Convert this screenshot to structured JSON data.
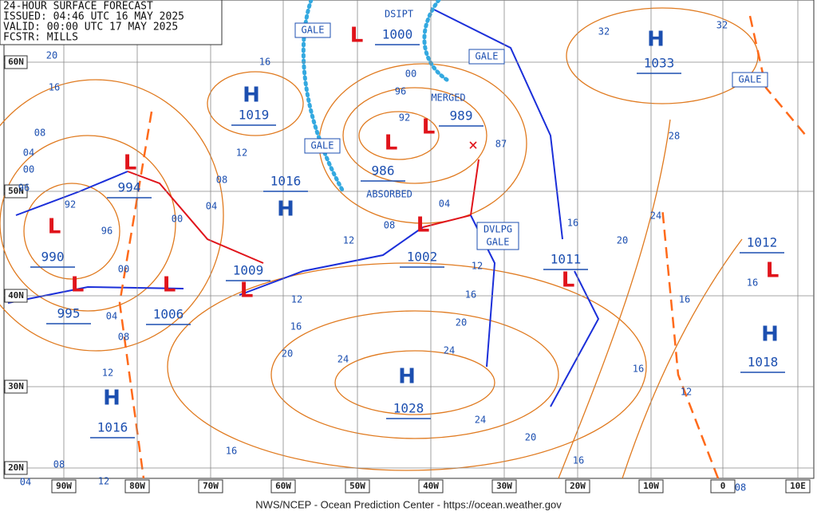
{
  "header": [
    "24-HOUR SURFACE FORECAST",
    "ISSUED: 04:46 UTC 16 MAY 2025",
    "VALID: 00:00 UTC 17 MAY 2025",
    "FCSTR: MILLS"
  ],
  "lat_labels": [
    "60N",
    "50N",
    "40N",
    "30N",
    "20N"
  ],
  "lon_labels": [
    "90W",
    "80W",
    "70W",
    "60W",
    "50W",
    "40W",
    "30W",
    "20W",
    "10W",
    "0",
    "10E"
  ],
  "centers": [
    {
      "symbol": "H",
      "pressure": "1019"
    },
    {
      "symbol": "L",
      "pressure": "1000"
    },
    {
      "symbol": "H",
      "pressure": "1033"
    },
    {
      "symbol": "L",
      "pressure": "989"
    },
    {
      "symbol": "L",
      "pressure": "986"
    },
    {
      "symbol": "L",
      "pressure": "994"
    },
    {
      "symbol": "H",
      "pressure": "1016"
    },
    {
      "symbol": "L",
      "pressure": "990"
    },
    {
      "symbol": "L",
      "pressure": "995"
    },
    {
      "symbol": "L",
      "pressure": "1006"
    },
    {
      "symbol": "L",
      "pressure": "1009"
    },
    {
      "symbol": "L",
      "pressure": "1002"
    },
    {
      "symbol": "L",
      "pressure": "1011"
    },
    {
      "symbol": "L",
      "pressure": "1012"
    },
    {
      "symbol": "H",
      "pressure": "1018"
    },
    {
      "symbol": "H",
      "pressure": "1028"
    },
    {
      "symbol": "H",
      "pressure": "1016"
    }
  ],
  "isobar_labels": [
    "16",
    "08",
    "04",
    "00",
    "96",
    "92",
    "96",
    "00",
    "04",
    "08",
    "12",
    "12",
    "08",
    "04",
    "00",
    "12",
    "08",
    "04",
    "12",
    "16",
    "20",
    "24",
    "24",
    "20",
    "16",
    "16",
    "12",
    "16",
    "16",
    "20",
    "24",
    "28",
    "16",
    "12",
    "16",
    "20",
    "24",
    "16",
    "12",
    "08",
    "04",
    "08",
    "87",
    "32",
    "32",
    "20",
    "16",
    "00",
    "96",
    "92"
  ],
  "annotations": {
    "gale": [
      "GALE",
      "GALE",
      "GALE",
      "GALE"
    ],
    "dsipt": "DSIPT",
    "merged": "MERGED",
    "absorbed": "ABSORBED",
    "dvlpg_gale": [
      "DVLPG",
      "GALE"
    ]
  },
  "footer": "NWS/NCEP - Ocean Prediction Center - https://ocean.weather.gov"
}
